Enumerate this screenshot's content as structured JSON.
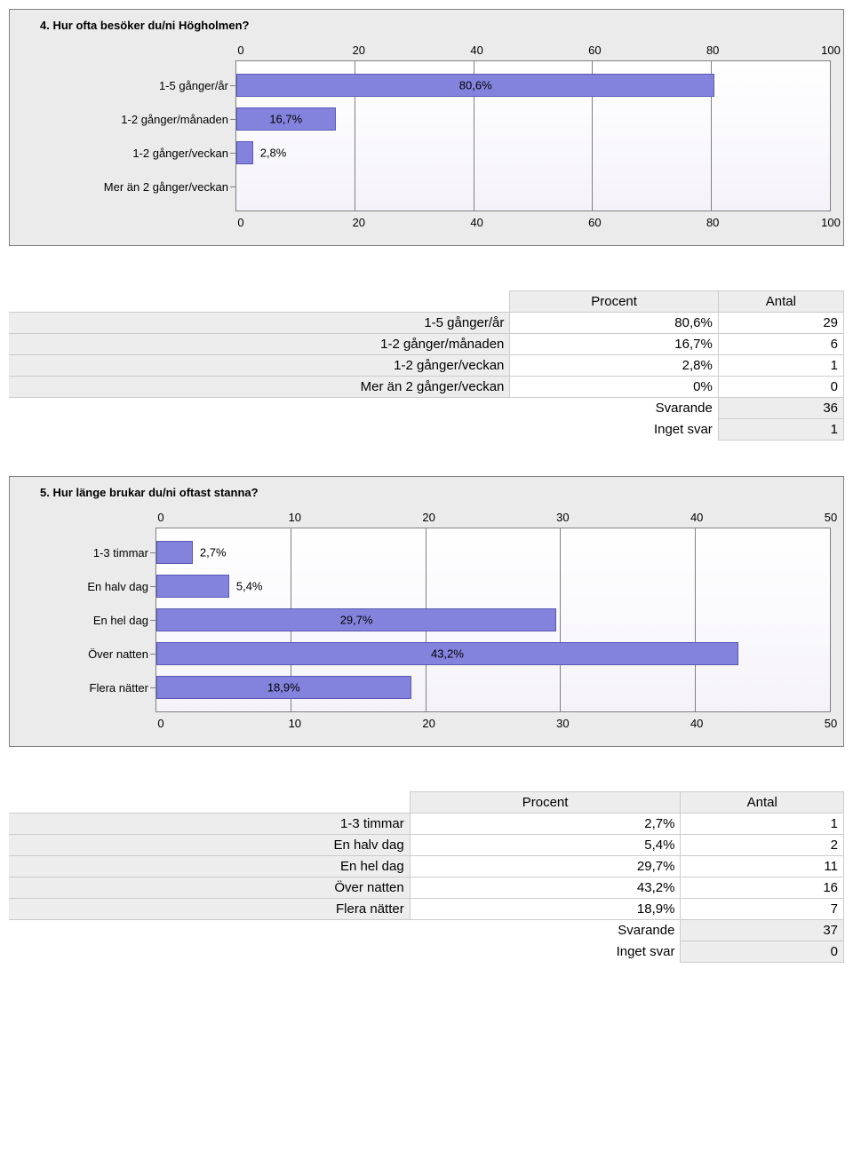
{
  "colors": {
    "panel_bg": "#ebebeb",
    "panel_border": "#808080",
    "plot_bg_top": "#ffffff",
    "plot_bg_bottom": "#f5f3f9",
    "bar_fill": "#8383de",
    "bar_border": "#5a5ab5",
    "grid": "#808080",
    "table_border": "#cccccc",
    "table_shade": "#ededed",
    "text": "#000000"
  },
  "chart4": {
    "type": "bar-horizontal",
    "title": "4. Hur ofta besöker du/ni Högholmen?",
    "xmin": 0,
    "xmax": 100,
    "xtick_step": 20,
    "ticks": [
      "0",
      "20",
      "40",
      "60",
      "80",
      "100"
    ],
    "label_col_width": 240,
    "bar_row_height": 38,
    "bars": [
      {
        "label": "1-5 gånger/år",
        "value": 80.6,
        "text": "80,6%",
        "text_pos": "center"
      },
      {
        "label": "1-2 gånger/månaden",
        "value": 16.7,
        "text": "16,7%",
        "text_pos": "center"
      },
      {
        "label": "1-2 gånger/veckan",
        "value": 2.8,
        "text": "2,8%",
        "text_pos": "after"
      },
      {
        "label": "Mer än 2 gånger/veckan",
        "value": 0,
        "text": "",
        "text_pos": "none"
      }
    ],
    "table": {
      "headers": [
        "Procent",
        "Antal"
      ],
      "label_col_width_pct": 60,
      "rows": [
        {
          "label": "1-5 gånger/år",
          "procent": "80,6%",
          "antal": "29"
        },
        {
          "label": "1-2 gånger/månaden",
          "procent": "16,7%",
          "antal": "6"
        },
        {
          "label": "1-2 gånger/veckan",
          "procent": "2,8%",
          "antal": "1"
        },
        {
          "label": "Mer än 2 gånger/veckan",
          "procent": "0%",
          "antal": "0"
        }
      ],
      "summary": [
        {
          "label": "Svarande",
          "antal": "36"
        },
        {
          "label": "Inget svar",
          "antal": "1"
        }
      ]
    }
  },
  "chart5": {
    "type": "bar-horizontal",
    "title": "5. Hur länge brukar du/ni oftast stanna?",
    "xmin": 0,
    "xmax": 50,
    "xtick_step": 10,
    "ticks": [
      "0",
      "10",
      "20",
      "30",
      "40",
      "50"
    ],
    "label_col_width": 150,
    "bar_row_height": 38,
    "bars": [
      {
        "label": "1-3 timmar",
        "value": 2.7,
        "text": "2,7%",
        "text_pos": "after"
      },
      {
        "label": "En halv dag",
        "value": 5.4,
        "text": "5,4%",
        "text_pos": "after"
      },
      {
        "label": "En hel dag",
        "value": 29.7,
        "text": "29,7%",
        "text_pos": "center"
      },
      {
        "label": "Över natten",
        "value": 43.2,
        "text": "43,2%",
        "text_pos": "center"
      },
      {
        "label": "Flera nätter",
        "value": 18.9,
        "text": "18,9%",
        "text_pos": "center"
      }
    ],
    "table": {
      "headers": [
        "Procent",
        "Antal"
      ],
      "label_col_width_pct": 48,
      "rows": [
        {
          "label": "1-3 timmar",
          "procent": "2,7%",
          "antal": "1"
        },
        {
          "label": "En halv dag",
          "procent": "5,4%",
          "antal": "2"
        },
        {
          "label": "En hel dag",
          "procent": "29,7%",
          "antal": "11"
        },
        {
          "label": "Över natten",
          "procent": "43,2%",
          "antal": "16"
        },
        {
          "label": "Flera nätter",
          "procent": "18,9%",
          "antal": "7"
        }
      ],
      "summary": [
        {
          "label": "Svarande",
          "antal": "37"
        },
        {
          "label": "Inget svar",
          "antal": "0"
        }
      ]
    }
  }
}
